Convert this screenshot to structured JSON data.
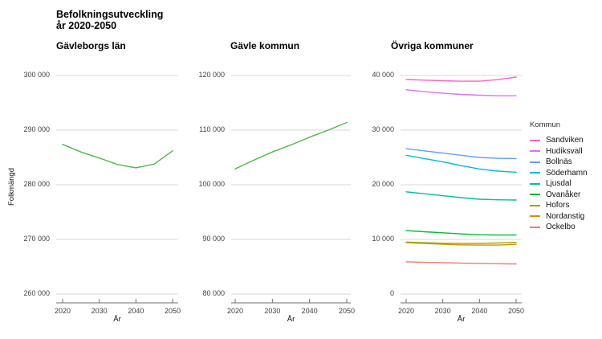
{
  "title": {
    "line1": "Befolkningsutveckling",
    "line2": "år 2020-2050"
  },
  "axis": {
    "x_label": "År",
    "y_label": "Folkmängd"
  },
  "legend": {
    "title": "Kommun",
    "items": [
      {
        "label": "Sandviken",
        "color": "#FF61C3"
      },
      {
        "label": "Hudiksvall",
        "color": "#DB72FB"
      },
      {
        "label": "Bollnäs",
        "color": "#619CFF"
      },
      {
        "label": "Söderhamn",
        "color": "#00B9E3"
      },
      {
        "label": "Ljusdal",
        "color": "#00C19F"
      },
      {
        "label": "Ovanåker",
        "color": "#00BA38"
      },
      {
        "label": "Hofors",
        "color": "#93AA00"
      },
      {
        "label": "Nordanstig",
        "color": "#D39200"
      },
      {
        "label": "Ockelbo",
        "color": "#F8766D"
      }
    ]
  },
  "chart_data": [
    {
      "type": "line",
      "title": "Gävleborgs län",
      "xlabel": "År",
      "ylabel": "Folkmängd",
      "x": [
        2020,
        2025,
        2030,
        2035,
        2040,
        2045,
        2050
      ],
      "xticks": [
        2020,
        2030,
        2040,
        2050
      ],
      "xtick_labels": [
        "2020",
        "2030",
        "2040",
        "2050"
      ],
      "ylim": [
        260000,
        300000
      ],
      "yticks": [
        300000,
        290000,
        280000,
        270000,
        260000
      ],
      "ytick_labels": [
        "300 000",
        "290 000",
        "280 000",
        "270 000",
        "260 000"
      ],
      "grid": true,
      "series": [
        {
          "name": "Gävleborgs län",
          "color": "#4CB94C",
          "values": [
            287400,
            286000,
            284900,
            283700,
            283100,
            283800,
            286200
          ]
        }
      ]
    },
    {
      "type": "line",
      "title": "Gävle kommun",
      "xlabel": "År",
      "ylabel": "",
      "x": [
        2020,
        2025,
        2030,
        2035,
        2040,
        2045,
        2050
      ],
      "xticks": [
        2020,
        2030,
        2040,
        2050
      ],
      "xtick_labels": [
        "2020",
        "2030",
        "2040",
        "2050"
      ],
      "ylim": [
        80000,
        120000
      ],
      "yticks": [
        120000,
        110000,
        100000,
        90000,
        80000
      ],
      "ytick_labels": [
        "120 000",
        "110 000",
        "100 000",
        "90 000",
        "80 000"
      ],
      "grid": true,
      "series": [
        {
          "name": "Gävle kommun",
          "color": "#4CB94C",
          "values": [
            102900,
            104500,
            106000,
            107300,
            108700,
            110000,
            111400
          ]
        }
      ]
    },
    {
      "type": "line",
      "title": "Övriga kommuner",
      "xlabel": "År",
      "ylabel": "",
      "legend_position": "right",
      "x": [
        2020,
        2025,
        2030,
        2035,
        2040,
        2045,
        2050
      ],
      "xticks": [
        2020,
        2030,
        2040,
        2050
      ],
      "xtick_labels": [
        "2020",
        "2030",
        "2040",
        "2050"
      ],
      "ylim": [
        0,
        40000
      ],
      "yticks": [
        40000,
        30000,
        20000,
        10000,
        0
      ],
      "ytick_labels": [
        "40 000",
        "30 000",
        "20 000",
        "10 000",
        "0"
      ],
      "grid": true,
      "series": [
        {
          "name": "Sandviken",
          "color": "#FF61C3",
          "values": [
            39300,
            39150,
            39050,
            38950,
            38950,
            39250,
            39700
          ]
        },
        {
          "name": "Hudiksvall",
          "color": "#DB72FB",
          "values": [
            37400,
            37050,
            36750,
            36550,
            36400,
            36300,
            36300
          ]
        },
        {
          "name": "Bollnäs",
          "color": "#619CFF",
          "values": [
            26600,
            26200,
            25800,
            25400,
            25000,
            24850,
            24800
          ]
        },
        {
          "name": "Söderhamn",
          "color": "#00B9E3",
          "values": [
            25400,
            24800,
            24200,
            23500,
            22900,
            22500,
            22300
          ]
        },
        {
          "name": "Ljusdal",
          "color": "#00C19F",
          "values": [
            18700,
            18350,
            18000,
            17650,
            17350,
            17250,
            17200
          ]
        },
        {
          "name": "Ovanåker",
          "color": "#00BA38",
          "values": [
            11600,
            11400,
            11200,
            11000,
            10850,
            10800,
            10800
          ]
        },
        {
          "name": "Hofors",
          "color": "#93AA00",
          "values": [
            9500,
            9400,
            9300,
            9250,
            9250,
            9350,
            9450
          ]
        },
        {
          "name": "Nordanstig",
          "color": "#D39200",
          "values": [
            9400,
            9250,
            9100,
            9000,
            8950,
            8950,
            9100
          ]
        },
        {
          "name": "Ockelbo",
          "color": "#F8766D",
          "values": [
            5900,
            5800,
            5750,
            5650,
            5600,
            5550,
            5500
          ]
        }
      ]
    }
  ]
}
